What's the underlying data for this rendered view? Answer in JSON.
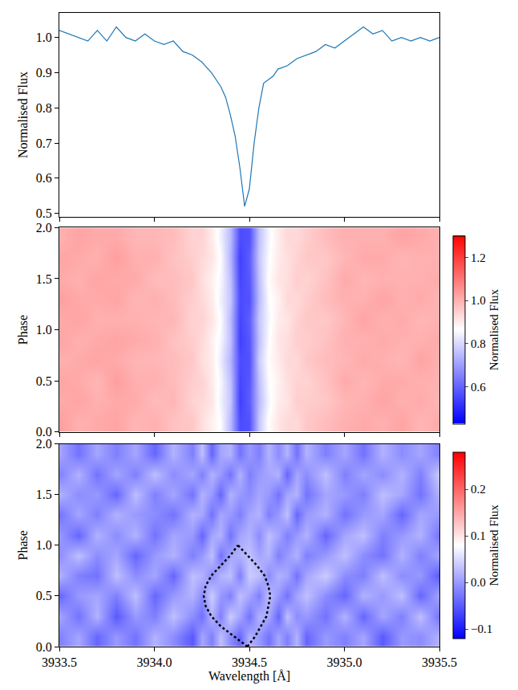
{
  "chart_data": [
    {
      "type": "line",
      "x": [
        3933.5,
        3933.55,
        3933.6,
        3933.65,
        3933.7,
        3933.75,
        3933.8,
        3933.85,
        3933.9,
        3933.95,
        3934.0,
        3934.05,
        3934.1,
        3934.15,
        3934.2,
        3934.25,
        3934.3,
        3934.325,
        3934.35,
        3934.375,
        3934.4,
        3934.425,
        3934.45,
        3934.475,
        3934.5,
        3934.525,
        3934.55,
        3934.575,
        3934.6,
        3934.625,
        3934.65,
        3934.7,
        3934.75,
        3934.8,
        3934.85,
        3934.9,
        3934.95,
        3935.0,
        3935.05,
        3935.1,
        3935.15,
        3935.2,
        3935.25,
        3935.3,
        3935.35,
        3935.4,
        3935.45,
        3935.5
      ],
      "values": [
        1.02,
        1.01,
        1.0,
        0.99,
        1.02,
        0.99,
        1.03,
        1.0,
        0.99,
        1.01,
        0.99,
        0.98,
        0.99,
        0.96,
        0.95,
        0.93,
        0.9,
        0.88,
        0.86,
        0.83,
        0.78,
        0.72,
        0.63,
        0.52,
        0.57,
        0.7,
        0.8,
        0.87,
        0.88,
        0.89,
        0.91,
        0.92,
        0.94,
        0.95,
        0.96,
        0.98,
        0.97,
        0.99,
        1.01,
        1.03,
        1.01,
        1.02,
        0.99,
        1.0,
        0.99,
        1.0,
        0.99,
        1.0
      ],
      "color": "#1f77b4",
      "xlim": [
        3933.5,
        3935.5
      ],
      "xticks": [
        3933.5,
        {
          "value": 3934,
          "label": "3934.0"
        },
        3934.5,
        {
          "value": 3935,
          "label": "3935.0"
        },
        3935.5
      ],
      "ylim": [
        0.49,
        1.07
      ],
      "yticks": [
        0.5,
        0.6,
        0.7,
        0.8,
        0.9,
        {
          "value": 1,
          "label": "1.0"
        }
      ],
      "y_label": "Normalised Flux",
      "tick_labels": "y"
    },
    {
      "type": "heatmap",
      "x": [
        3933.5,
        3933.6,
        3933.7,
        3933.8,
        3933.9,
        3934.0,
        3934.1,
        3934.2,
        3934.25,
        3934.3,
        3934.35,
        3934.4,
        3934.45,
        3934.5,
        3934.55,
        3934.6,
        3934.65,
        3934.7,
        3934.75,
        3934.8,
        3934.9,
        3935.0,
        3935.1,
        3935.2,
        3935.3,
        3935.4,
        3935.5
      ],
      "y": [
        0.1,
        0.3,
        0.5,
        0.7,
        0.9,
        1.1,
        1.3,
        1.5,
        1.7,
        1.9
      ],
      "z": [
        [
          1.03,
          1.0,
          1.01,
          1.02,
          0.99,
          1.0,
          0.97,
          0.96,
          0.92,
          0.89,
          0.86,
          0.75,
          0.56,
          0.57,
          0.77,
          0.87,
          0.91,
          0.93,
          0.93,
          0.96,
          0.98,
          1.0,
          1.01,
          1.0,
          1.02,
          0.99,
          1.01
        ],
        [
          1.01,
          1.02,
          1.0,
          1.01,
          1.01,
          0.98,
          0.99,
          0.94,
          0.93,
          0.91,
          0.84,
          0.77,
          0.54,
          0.59,
          0.75,
          0.85,
          0.9,
          0.91,
          0.95,
          0.95,
          0.96,
          0.99,
          1.0,
          1.02,
          1.0,
          1.01,
          0.99
        ],
        [
          1.02,
          1.01,
          0.99,
          1.03,
          1.0,
          1.0,
          0.98,
          0.95,
          0.94,
          0.9,
          0.85,
          0.76,
          0.55,
          0.58,
          0.76,
          0.86,
          0.89,
          0.92,
          0.94,
          0.94,
          0.97,
          1.01,
          0.99,
          1.01,
          1.01,
          1.0,
          1.0
        ],
        [
          1.0,
          1.01,
          1.02,
          1.01,
          0.99,
          0.99,
          0.98,
          0.96,
          0.92,
          0.9,
          0.83,
          0.74,
          0.56,
          0.57,
          0.78,
          0.87,
          0.9,
          0.93,
          0.93,
          0.96,
          0.98,
          0.99,
          1.01,
          1.0,
          0.99,
          1.02,
          1.0
        ],
        [
          1.02,
          1.0,
          1.01,
          1.02,
          1.01,
          1.0,
          0.97,
          0.95,
          0.93,
          0.89,
          0.85,
          0.76,
          0.54,
          0.58,
          0.76,
          0.86,
          0.91,
          0.92,
          0.95,
          0.95,
          0.97,
          1.0,
          1.0,
          1.01,
          1.0,
          1.0,
          1.01
        ],
        [
          1.01,
          1.02,
          1.0,
          1.0,
          1.0,
          0.99,
          0.99,
          0.94,
          0.94,
          0.91,
          0.86,
          0.75,
          0.55,
          0.59,
          0.77,
          0.85,
          0.9,
          0.91,
          0.94,
          0.96,
          0.96,
          0.99,
          1.02,
          1.0,
          1.01,
          0.99,
          1.0
        ],
        [
          1.03,
          1.01,
          1.01,
          1.02,
          0.99,
          1.0,
          0.98,
          0.95,
          0.93,
          0.9,
          0.84,
          0.77,
          0.56,
          0.57,
          0.75,
          0.86,
          0.89,
          0.93,
          0.93,
          0.95,
          0.98,
          1.0,
          1.0,
          1.02,
          1.0,
          1.01,
          0.99
        ],
        [
          1.01,
          1.0,
          1.02,
          1.01,
          1.01,
          0.98,
          0.98,
          0.96,
          0.92,
          0.89,
          0.85,
          0.76,
          0.55,
          0.58,
          0.76,
          0.87,
          0.91,
          0.92,
          0.95,
          0.94,
          0.97,
          1.01,
          0.99,
          1.0,
          1.0,
          1.0,
          1.01
        ],
        [
          1.02,
          1.01,
          1.0,
          1.03,
          1.0,
          1.0,
          0.97,
          0.95,
          0.93,
          0.91,
          0.86,
          0.74,
          0.54,
          0.59,
          0.77,
          0.86,
          0.9,
          0.92,
          0.94,
          0.96,
          0.96,
          0.99,
          1.01,
          1.01,
          0.99,
          1.0,
          1.0
        ],
        [
          1.0,
          1.02,
          1.01,
          1.01,
          0.99,
          0.99,
          0.98,
          0.94,
          0.94,
          0.9,
          0.84,
          0.75,
          0.56,
          0.57,
          0.76,
          0.85,
          0.9,
          0.93,
          0.93,
          0.95,
          0.98,
          1.0,
          1.0,
          1.0,
          1.02,
          1.01,
          1.0
        ]
      ],
      "color": "bwr",
      "xlim": [
        3933.5,
        3935.5
      ],
      "xticks": [
        3933.5,
        {
          "value": 3934,
          "label": "3934.0"
        },
        3934.5,
        {
          "value": 3935,
          "label": "3935.0"
        },
        3935.5
      ],
      "ylim": [
        0,
        2
      ],
      "yticks": [
        {
          "value": 0,
          "label": "0.0"
        },
        0.5,
        {
          "value": 1,
          "label": "1.0"
        },
        1.5,
        {
          "value": 2,
          "label": "2.0"
        }
      ],
      "y_label": "Phase",
      "tick_labels": "y",
      "colorbar": {
        "title": "Normalised Flux",
        "range": [
          0.43,
          1.3
        ],
        "ticks": [
          0.6,
          0.8,
          {
            "value": 1,
            "label": "1.0"
          },
          1.2
        ]
      }
    },
    {
      "type": "heatmap",
      "x": [
        3933.5,
        3933.6,
        3933.7,
        3933.8,
        3933.9,
        3934.0,
        3934.1,
        3934.2,
        3934.25,
        3934.3,
        3934.35,
        3934.4,
        3934.45,
        3934.5,
        3934.55,
        3934.6,
        3934.65,
        3934.7,
        3934.75,
        3934.8,
        3934.9,
        3935.0,
        3935.1,
        3935.2,
        3935.3,
        3935.4,
        3935.5
      ],
      "y": [
        0.1,
        0.3,
        0.5,
        0.7,
        0.9,
        1.1,
        1.3,
        1.5,
        1.7,
        1.9
      ],
      "z": [
        [
          -0.02,
          0.01,
          -0.04,
          0.0,
          -0.03,
          0.02,
          -0.01,
          -0.05,
          0.01,
          -0.02,
          0.03,
          -0.01,
          -0.04,
          0.02,
          0.0,
          -0.03,
          0.01,
          -0.02,
          0.02,
          -0.04,
          0.0,
          -0.02,
          0.01,
          -0.05,
          0.0,
          -0.01,
          0.02
        ],
        [
          0.01,
          -0.03,
          0.02,
          -0.05,
          0.0,
          -0.02,
          0.03,
          -0.01,
          -0.03,
          0.02,
          -0.02,
          0.04,
          0.01,
          -0.03,
          0.02,
          0.01,
          -0.04,
          0.03,
          -0.01,
          0.0,
          -0.03,
          0.02,
          -0.04,
          0.01,
          -0.02,
          0.03,
          -0.03
        ],
        [
          -0.04,
          0.0,
          0.01,
          -0.02,
          0.03,
          -0.04,
          0.0,
          0.02,
          -0.01,
          0.04,
          0.0,
          -0.02,
          0.03,
          0.01,
          -0.02,
          0.03,
          0.0,
          -0.03,
          0.01,
          0.03,
          -0.01,
          -0.04,
          0.02,
          0.0,
          0.03,
          -0.04,
          0.01
        ],
        [
          0.02,
          -0.02,
          -0.03,
          0.03,
          -0.01,
          0.01,
          -0.04,
          0.03,
          0.02,
          -0.01,
          0.02,
          0.03,
          -0.02,
          0.04,
          0.03,
          -0.01,
          0.02,
          0.01,
          -0.03,
          0.01,
          0.04,
          -0.01,
          -0.02,
          0.03,
          -0.01,
          0.0,
          -0.05
        ],
        [
          -0.01,
          0.03,
          -0.01,
          0.01,
          -0.04,
          0.0,
          0.02,
          -0.02,
          0.0,
          0.03,
          -0.03,
          0.01,
          0.02,
          0.03,
          0.01,
          0.02,
          -0.02,
          0.0,
          0.02,
          -0.02,
          0.0,
          0.03,
          -0.01,
          -0.03,
          0.02,
          -0.02,
          0.01
        ],
        [
          0.0,
          -0.04,
          0.02,
          -0.01,
          0.02,
          -0.03,
          0.01,
          0.0,
          -0.04,
          0.01,
          0.02,
          -0.03,
          0.01,
          0.02,
          -0.01,
          0.03,
          0.01,
          -0.02,
          0.0,
          0.02,
          -0.04,
          0.01,
          0.03,
          -0.02,
          0.0,
          0.02,
          -0.03
        ],
        [
          -0.03,
          0.01,
          -0.02,
          0.02,
          0.0,
          -0.01,
          -0.03,
          0.02,
          0.01,
          -0.03,
          0.01,
          0.0,
          -0.02,
          0.01,
          0.02,
          -0.02,
          0.0,
          0.03,
          -0.04,
          0.0,
          0.02,
          -0.03,
          0.0,
          0.01,
          -0.04,
          0.01,
          0.0
        ],
        [
          0.02,
          -0.01,
          0.0,
          -0.04,
          0.03,
          -0.02,
          0.01,
          -0.03,
          0.02,
          0.0,
          -0.04,
          0.02,
          0.0,
          -0.01,
          0.01,
          0.0,
          -0.03,
          0.01,
          0.02,
          -0.03,
          0.01,
          0.0,
          -0.02,
          0.03,
          0.01,
          -0.03,
          0.02
        ],
        [
          -0.02,
          0.02,
          -0.03,
          0.01,
          -0.02,
          0.03,
          -0.01,
          0.01,
          -0.02,
          0.02,
          0.0,
          -0.03,
          0.02,
          -0.02,
          0.0,
          0.01,
          0.02,
          -0.04,
          0.01,
          -0.01,
          0.03,
          -0.02,
          0.01,
          -0.01,
          0.02,
          -0.02,
          0.04
        ],
        [
          0.01,
          -0.03,
          0.01,
          -0.02,
          0.01,
          -0.04,
          0.02,
          -0.02,
          0.03,
          -0.04,
          0.01,
          0.02,
          -0.03,
          0.0,
          -0.02,
          0.02,
          -0.01,
          0.02,
          -0.03,
          0.02,
          -0.02,
          0.01,
          -0.03,
          0.02,
          -0.01,
          0.01,
          -0.02
        ]
      ],
      "color": "bwr",
      "xlim": [
        3933.5,
        3935.5
      ],
      "xticks": [
        3933.5,
        {
          "value": 3934,
          "label": "3934.0"
        },
        3934.5,
        {
          "value": 3935,
          "label": "3935.0"
        },
        3935.5
      ],
      "ylim": [
        0,
        2
      ],
      "yticks": [
        {
          "value": 0,
          "label": "0.0"
        },
        0.5,
        {
          "value": 1,
          "label": "1.0"
        },
        1.5,
        {
          "value": 2,
          "label": "2.0"
        }
      ],
      "x_label": "Wavelength [Å]",
      "y_label": "Phase",
      "colorbar": {
        "title": "Normalised Flux",
        "range": [
          -0.12,
          0.28
        ],
        "ticks": [
          {
            "value": -0.1,
            "label": "−0.1"
          },
          {
            "value": 0,
            "label": "0.0"
          },
          0.1,
          0.2
        ]
      },
      "curves": [
        {
          "x": [
            3934.49,
            3934.42,
            3934.35,
            3934.3,
            3934.27,
            3934.26,
            3934.27,
            3934.3,
            3934.35,
            3934.4,
            3934.44
          ],
          "y": [
            0.0,
            0.1,
            0.2,
            0.3,
            0.4,
            0.5,
            0.6,
            0.7,
            0.8,
            0.9,
            1.0
          ],
          "color": "black",
          "line_style": "dotted"
        },
        {
          "x": [
            3934.49,
            3934.53,
            3934.56,
            3934.59,
            3934.6,
            3934.61,
            3934.6,
            3934.58,
            3934.54,
            3934.49,
            3934.44
          ],
          "y": [
            0.0,
            0.1,
            0.2,
            0.3,
            0.4,
            0.5,
            0.6,
            0.7,
            0.8,
            0.9,
            1.0
          ],
          "color": "black",
          "line_style": "dotted"
        }
      ]
    }
  ]
}
